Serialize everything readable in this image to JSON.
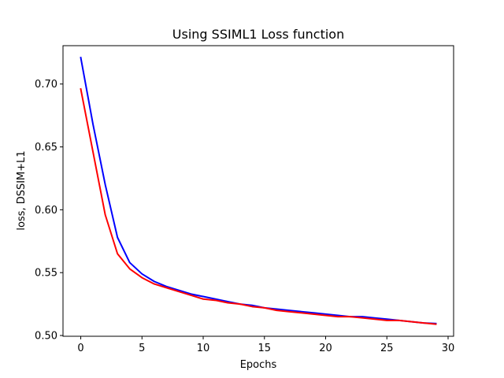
{
  "chart_data": {
    "type": "line",
    "title": "Using SSIML1 Loss function",
    "xlabel": "Epochs",
    "ylabel": "loss, DSSIM+L1",
    "xlim": [
      -1.45,
      30.45
    ],
    "ylim": [
      0.4994,
      0.7305
    ],
    "xticks": [
      0,
      5,
      10,
      15,
      20,
      25,
      30
    ],
    "yticks": [
      0.5,
      0.55,
      0.6,
      0.65,
      0.7
    ],
    "xtick_labels": [
      "0",
      "5",
      "10",
      "15",
      "20",
      "25",
      "30"
    ],
    "ytick_labels": [
      "0.50",
      "0.55",
      "0.60",
      "0.65",
      "0.70"
    ],
    "grid": false,
    "legend": null,
    "x": [
      0,
      1,
      2,
      3,
      4,
      5,
      6,
      7,
      8,
      9,
      10,
      11,
      12,
      13,
      14,
      15,
      16,
      17,
      18,
      19,
      20,
      21,
      22,
      23,
      24,
      25,
      26,
      27,
      28,
      29
    ],
    "series": [
      {
        "color": "#0000ff",
        "values": [
          0.721,
          0.668,
          0.62,
          0.578,
          0.558,
          0.549,
          0.543,
          0.539,
          0.536,
          0.533,
          0.531,
          0.529,
          0.527,
          0.525,
          0.524,
          0.522,
          0.521,
          0.52,
          0.519,
          0.518,
          0.517,
          0.516,
          0.515,
          0.515,
          0.514,
          0.513,
          0.512,
          0.511,
          0.51,
          0.5095
        ]
      },
      {
        "color": "#ff0000",
        "values": [
          0.696,
          0.646,
          0.596,
          0.565,
          0.553,
          0.546,
          0.541,
          0.538,
          0.535,
          0.532,
          0.529,
          0.528,
          0.526,
          0.525,
          0.523,
          0.522,
          0.52,
          0.519,
          0.518,
          0.517,
          0.516,
          0.515,
          0.515,
          0.514,
          0.513,
          0.512,
          0.512,
          0.511,
          0.51,
          0.509
        ]
      }
    ]
  }
}
